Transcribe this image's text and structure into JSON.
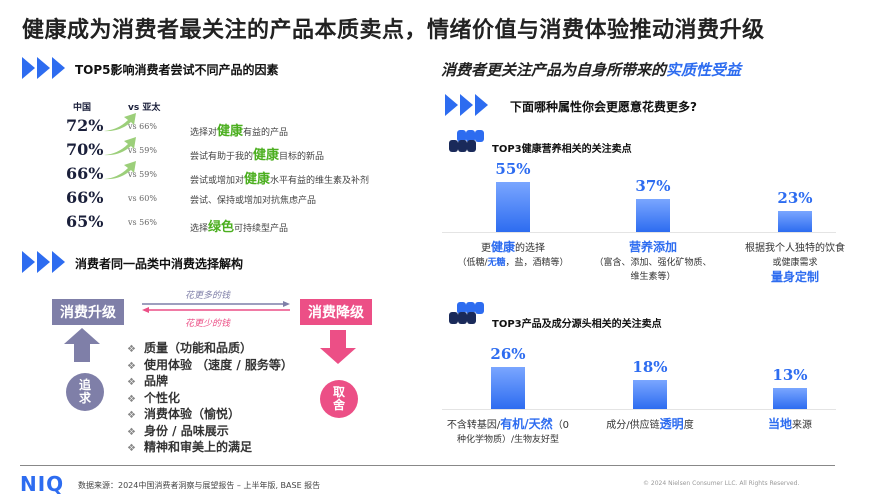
{
  "header": {
    "title": "健康成为消费者最关注的产品本质卖点，情绪价值与消费体验推动消费升级"
  },
  "left": {
    "section1": {
      "title": "TOP5影响消费者尝试不同产品的因素",
      "col_china": "中国",
      "col_apac": "vs 亚太",
      "rows": [
        {
          "china": "72%",
          "apac": "vs 66%",
          "pre": "选择对",
          "hl": "健康",
          "post": "有益的产品",
          "arrow": true
        },
        {
          "china": "70%",
          "apac": "vs 59%",
          "pre": "尝试有助于我的",
          "hl": "健康",
          "post": "目标的新品",
          "arrow": true
        },
        {
          "china": "66%",
          "apac": "vs 59%",
          "pre": "尝试或增加对",
          "hl": "健康",
          "post": "水平有益的维生素及补剂",
          "arrow": true
        },
        {
          "china": "66%",
          "apac": "vs 60%",
          "pre": "尝试、保持或增加对抗焦虑产品",
          "hl": "",
          "post": "",
          "arrow": false
        },
        {
          "china": "65%",
          "apac": "vs 56%",
          "pre": "选择",
          "hl": "绿色",
          "post": "可持续型产品",
          "arrow": false
        }
      ]
    },
    "section2": {
      "title": "消费者同一品类中消费选择解构",
      "upgrade": "消费升级",
      "downgrade": "消费降级",
      "more_money": "花更多的钱",
      "less_money": "花更少的钱",
      "pursue": [
        "追",
        "求"
      ],
      "tradeoff": [
        "取",
        "舍"
      ],
      "bullets": [
        "质量（功能和品质）",
        "使用体验 （速度 / 服务等）",
        "品牌",
        "个性化",
        "消费体验（愉悦）",
        "身份 / 品味展示",
        "精神和审美上的满足"
      ]
    }
  },
  "right": {
    "headline_pre": "消费者更关注产品为自身所带来的",
    "headline_hl": "实质性受益",
    "question": "下面哪种属性你会更愿意花费更多?",
    "group1": {
      "title": "TOP3健康营养相关的关注卖点",
      "items": [
        {
          "pct": "55%",
          "value": 55,
          "l1_pre": "更",
          "l1_hl": "健康",
          "l1_post": "的选择",
          "l2_pre": "（低糖/",
          "l2_hl": "无糖",
          "l2_post": "，盐，酒精等）"
        },
        {
          "pct": "37%",
          "value": 37,
          "l1_hl": "营养添加",
          "l2_pre": "（富含、添加、强化矿物质、",
          "l3": "维生素等）"
        },
        {
          "pct": "23%",
          "value": 23,
          "l1_pre": "根据我个人独特的饮食",
          "l2_pre": "或健康需求",
          "l3_hl": "量身定制"
        }
      ]
    },
    "group2": {
      "title": "TOP3产品及成分源头相关的关注卖点",
      "items": [
        {
          "pct": "26%",
          "value": 26,
          "l1_pre": "不含转基因/",
          "l1_hl": "有机/天然",
          "l1_post": "（0",
          "l2_pre": "种化学物质）/生物友好型"
        },
        {
          "pct": "18%",
          "value": 18,
          "l1_pre": "成分/供应链",
          "l1_hl": "透明",
          "l1_post": "度"
        },
        {
          "pct": "13%",
          "value": 13,
          "l1_hl": "当地",
          "l1_post": "来源"
        }
      ]
    }
  },
  "footer": {
    "logo": "NIQ",
    "source": "数据来源：2024中国消费者洞察与展望报告 – 上半年版, BASE 报告",
    "copyright": "© 2024 Nielsen Consumer LLC. All Rights Reserved."
  }
}
